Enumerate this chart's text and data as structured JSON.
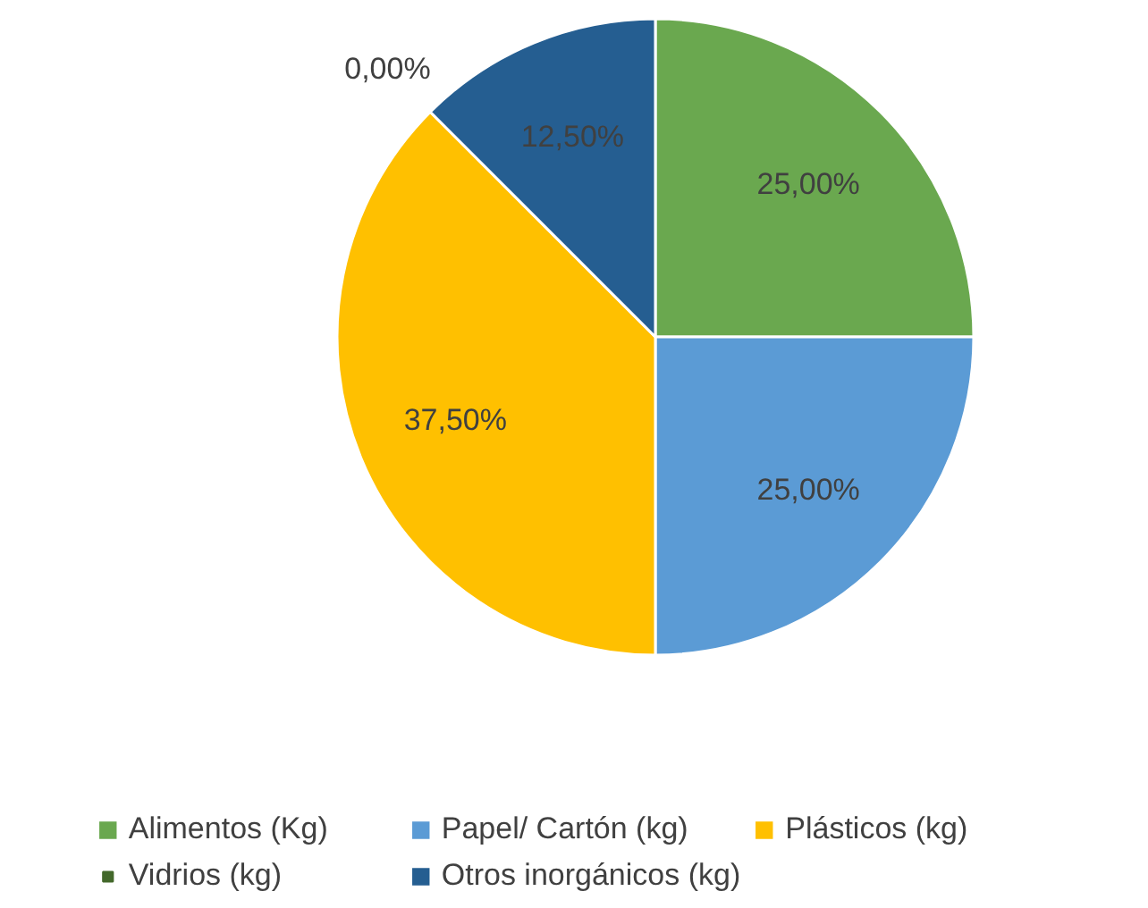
{
  "chart_data": {
    "type": "pie",
    "categories": [
      "Alimentos (Kg)",
      "Papel/ Cartón (kg)",
      "Plásticos (kg)",
      "Vidrios (kg)",
      "Otros inorgánicos (kg)"
    ],
    "values": [
      25,
      25,
      37.5,
      0,
      12.5
    ],
    "value_labels": [
      "25,00%",
      "25,00%",
      "37,50%",
      "0,00%",
      "12,50%"
    ],
    "colors": [
      "#6aa84f",
      "#5b9bd5",
      "#ffc000",
      "#43682b",
      "#255e91"
    ],
    "legend": "bottom"
  }
}
